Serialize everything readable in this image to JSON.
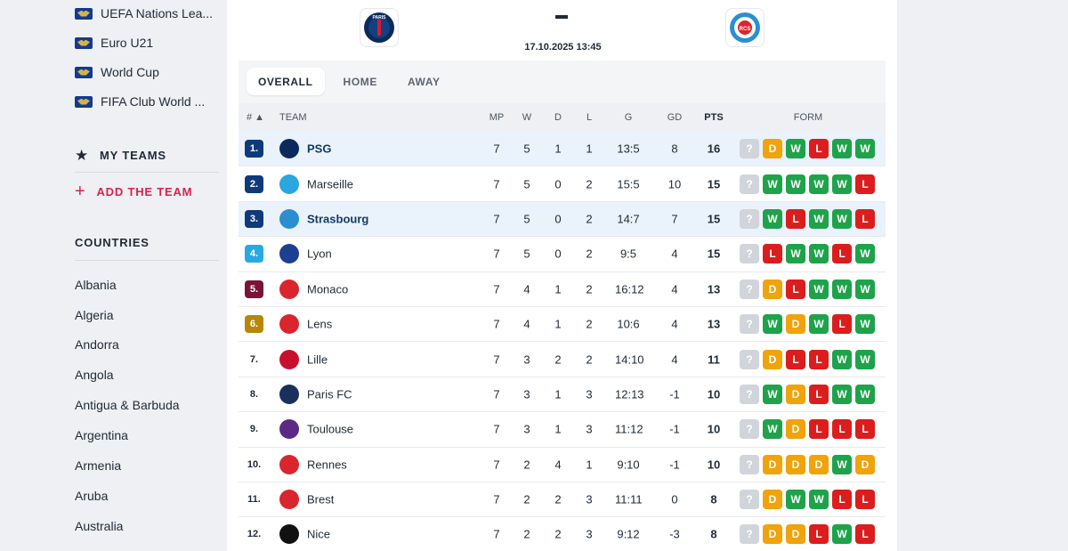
{
  "sidebar": {
    "competitions": [
      {
        "label": "UEFA Nations Lea..."
      },
      {
        "label": "Euro U21"
      },
      {
        "label": "World Cup"
      },
      {
        "label": "FIFA Club World ..."
      }
    ],
    "my_teams": "MY TEAMS",
    "add_team": "ADD THE TEAM",
    "countries_title": "COUNTRIES",
    "countries": [
      "Albania",
      "Algeria",
      "Andorra",
      "Angola",
      "Antigua & Barbuda",
      "Argentina",
      "Armenia",
      "Aruba",
      "Australia"
    ]
  },
  "match": {
    "home_crest": "PARIS",
    "away_crest": "RCS",
    "score": "-",
    "datetime": "17.10.2025 13:45"
  },
  "tabs": [
    "OVERALL",
    "HOME",
    "AWAY"
  ],
  "table": {
    "headers": {
      "rank": "# ▲",
      "team": "TEAM",
      "mp": "MP",
      "w": "W",
      "d": "D",
      "l": "L",
      "g": "G",
      "gd": "GD",
      "pts": "PTS",
      "form": "FORM"
    },
    "rows": [
      {
        "rank": "1.",
        "team": "PSG",
        "mp": "7",
        "w": "5",
        "d": "1",
        "l": "1",
        "g": "13:5",
        "gd": "8",
        "pts": "16",
        "form": [
          "?",
          "D",
          "W",
          "L",
          "W",
          "W"
        ],
        "logo": "PSG"
      },
      {
        "rank": "2.",
        "team": "Marseille",
        "mp": "7",
        "w": "5",
        "d": "0",
        "l": "2",
        "g": "15:5",
        "gd": "10",
        "pts": "15",
        "form": [
          "?",
          "W",
          "W",
          "W",
          "W",
          "L"
        ],
        "logo": "OM"
      },
      {
        "rank": "3.",
        "team": "Strasbourg",
        "mp": "7",
        "w": "5",
        "d": "0",
        "l": "2",
        "g": "14:7",
        "gd": "7",
        "pts": "15",
        "form": [
          "?",
          "W",
          "L",
          "W",
          "W",
          "L"
        ],
        "logo": "RCS"
      },
      {
        "rank": "4.",
        "team": "Lyon",
        "mp": "7",
        "w": "5",
        "d": "0",
        "l": "2",
        "g": "9:5",
        "gd": "4",
        "pts": "15",
        "form": [
          "?",
          "L",
          "W",
          "W",
          "L",
          "W"
        ],
        "logo": "OL"
      },
      {
        "rank": "5.",
        "team": "Monaco",
        "mp": "7",
        "w": "4",
        "d": "1",
        "l": "2",
        "g": "16:12",
        "gd": "4",
        "pts": "13",
        "form": [
          "?",
          "D",
          "L",
          "W",
          "W",
          "W"
        ],
        "logo": "ASM"
      },
      {
        "rank": "6.",
        "team": "Lens",
        "mp": "7",
        "w": "4",
        "d": "1",
        "l": "2",
        "g": "10:6",
        "gd": "4",
        "pts": "13",
        "form": [
          "?",
          "W",
          "D",
          "W",
          "L",
          "W"
        ],
        "logo": "RCL"
      },
      {
        "rank": "7.",
        "team": "Lille",
        "mp": "7",
        "w": "3",
        "d": "2",
        "l": "2",
        "g": "14:10",
        "gd": "4",
        "pts": "11",
        "form": [
          "?",
          "D",
          "L",
          "L",
          "W",
          "W"
        ],
        "logo": "LOSC"
      },
      {
        "rank": "8.",
        "team": "Paris FC",
        "mp": "7",
        "w": "3",
        "d": "1",
        "l": "3",
        "g": "12:13",
        "gd": "-1",
        "pts": "10",
        "form": [
          "?",
          "W",
          "D",
          "L",
          "W",
          "W"
        ],
        "logo": "PFC"
      },
      {
        "rank": "9.",
        "team": "Toulouse",
        "mp": "7",
        "w": "3",
        "d": "1",
        "l": "3",
        "g": "11:12",
        "gd": "-1",
        "pts": "10",
        "form": [
          "?",
          "W",
          "D",
          "L",
          "L",
          "L"
        ],
        "logo": "TFC"
      },
      {
        "rank": "10.",
        "team": "Rennes",
        "mp": "7",
        "w": "2",
        "d": "4",
        "l": "1",
        "g": "9:10",
        "gd": "-1",
        "pts": "10",
        "form": [
          "?",
          "D",
          "D",
          "D",
          "W",
          "D"
        ],
        "logo": "SRFC"
      },
      {
        "rank": "11.",
        "team": "Brest",
        "mp": "7",
        "w": "2",
        "d": "2",
        "l": "3",
        "g": "11:11",
        "gd": "0",
        "pts": "8",
        "form": [
          "?",
          "D",
          "W",
          "W",
          "L",
          "L"
        ],
        "logo": "SB29"
      },
      {
        "rank": "12.",
        "team": "Nice",
        "mp": "7",
        "w": "2",
        "d": "2",
        "l": "3",
        "g": "9:12",
        "gd": "-3",
        "pts": "8",
        "form": [
          "?",
          "D",
          "D",
          "L",
          "W",
          "L"
        ],
        "logo": "OGCN"
      }
    ]
  },
  "colors": {
    "rank_ucl": "#0f3a7a",
    "rank_uel": "#27a9e1",
    "rank_conf": "#7a1436",
    "rank_conf_q": "#b8860b",
    "accent_red": "#d8234c",
    "form_win": "#1ea34a",
    "form_draw": "#f0a30a",
    "form_loss": "#dc1d1d"
  }
}
